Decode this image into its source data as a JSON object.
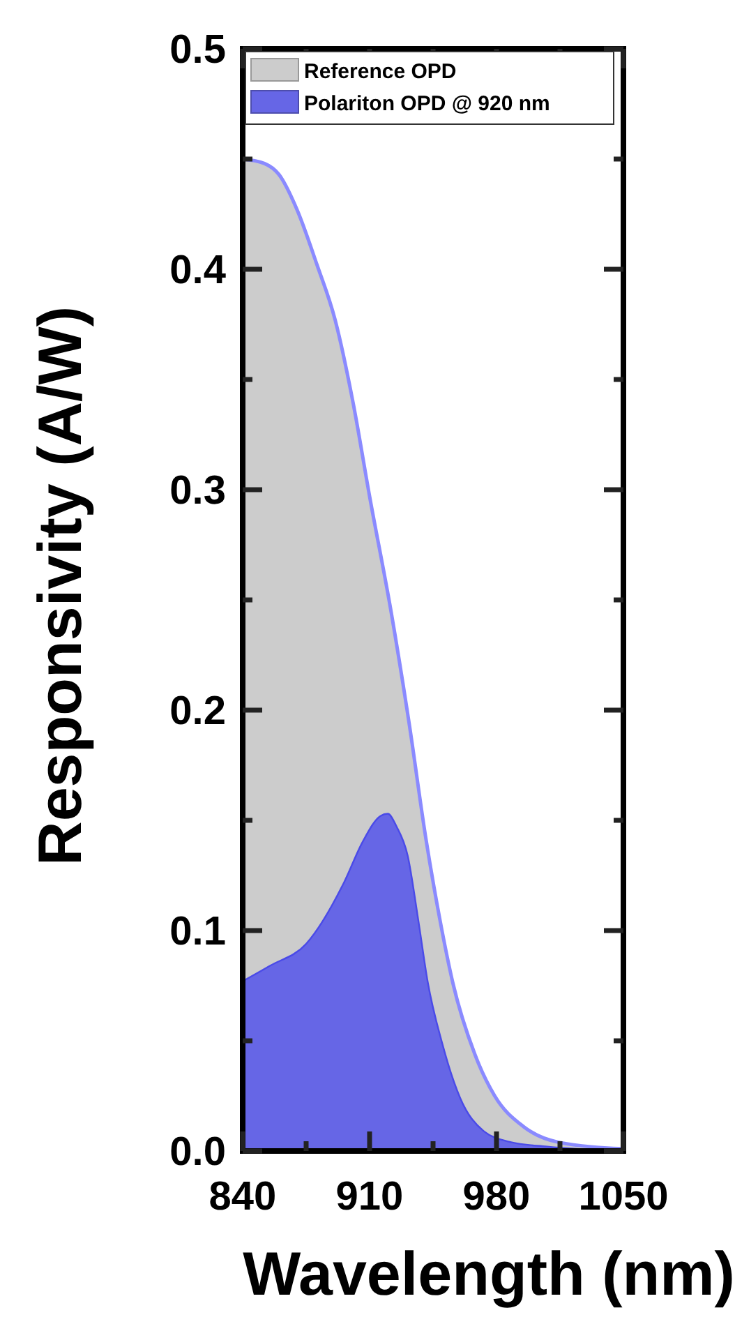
{
  "chart_data": {
    "type": "area",
    "xlabel": "Wavelength (nm)",
    "ylabel": "Responsivity (A/W)",
    "xlim": [
      840,
      1050
    ],
    "ylim": [
      0,
      0.5
    ],
    "xticks": [
      840,
      {
        "value": 875,
        "label": null
      },
      910,
      {
        "value": 945,
        "label": null
      },
      980,
      {
        "value": 1015,
        "label": null
      },
      1050
    ],
    "yticks": [
      {
        "value": 0,
        "label": "0.0"
      },
      {
        "value": 0.05,
        "label": null
      },
      0.1,
      {
        "value": 0.15,
        "label": null
      },
      0.2,
      {
        "value": 0.25,
        "label": null
      },
      0.3,
      {
        "value": 0.35,
        "label": null
      },
      0.4,
      {
        "value": 0.45,
        "label": null
      },
      0.5
    ],
    "legend": "top left",
    "series": [
      {
        "name": "Reference OPD",
        "color": "#cccccc",
        "x": [
          840,
          852,
          860,
          870,
          881,
          891,
          901,
          910,
          922,
          932,
          941,
          949,
          956,
          968,
          979,
          995,
          1014,
          1050
        ],
        "values": [
          0.45,
          0.448,
          0.443,
          0.427,
          0.402,
          0.377,
          0.339,
          0.297,
          0.244,
          0.193,
          0.142,
          0.104,
          0.076,
          0.044,
          0.025,
          0.011,
          0.004,
          0.001
        ]
      },
      {
        "name": "Polariton OPD @ 920 nm",
        "color": "#6666e6",
        "x": [
          840,
          855,
          875,
          896,
          906,
          916,
          920,
          925,
          931,
          937,
          942,
          950,
          960,
          973,
          988,
          1008,
          1050
        ],
        "values": [
          0.077,
          0.084,
          0.094,
          0.122,
          0.14,
          0.152,
          0.153,
          0.147,
          0.134,
          0.104,
          0.077,
          0.049,
          0.024,
          0.009,
          0.004,
          0.002,
          0
        ]
      }
    ]
  }
}
